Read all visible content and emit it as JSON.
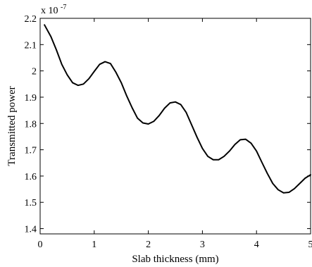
{
  "chart_data": {
    "type": "line",
    "title": "",
    "xlabel": "Slab thickness (mm)",
    "ylabel": "Transmitted power",
    "y_exponent": {
      "base": "x 10",
      "power": "-7"
    },
    "xlim": [
      0,
      5
    ],
    "ylim": [
      1.38,
      2.2
    ],
    "x_ticks": [
      0,
      1,
      2,
      3,
      4,
      5
    ],
    "x_tick_labels": [
      "0",
      "1",
      "2",
      "3",
      "4",
      "5"
    ],
    "y_ticks": [
      1.4,
      1.5,
      1.6,
      1.7,
      1.8,
      1.9,
      2.0,
      2.1,
      2.2
    ],
    "y_tick_labels": [
      "1.4",
      "1.5",
      "1.6",
      "1.7",
      "1.8",
      "1.9",
      "2",
      "2.1",
      "2.2"
    ],
    "grid": false,
    "line_color": "#000000",
    "series": [
      {
        "x": [
          0.08,
          0.2,
          0.3,
          0.4,
          0.5,
          0.6,
          0.7,
          0.8,
          0.9,
          1.0,
          1.1,
          1.2,
          1.3,
          1.4,
          1.5,
          1.6,
          1.7,
          1.8,
          1.9,
          2.0,
          2.1,
          2.2,
          2.3,
          2.4,
          2.5,
          2.6,
          2.7,
          2.8,
          2.9,
          3.0,
          3.1,
          3.2,
          3.3,
          3.4,
          3.5,
          3.6,
          3.7,
          3.8,
          3.9,
          4.0,
          4.1,
          4.2,
          4.3,
          4.4,
          4.5,
          4.6,
          4.7,
          4.8,
          4.9,
          5.0
        ],
        "y": [
          2.175,
          2.13,
          2.08,
          2.025,
          1.985,
          1.955,
          1.945,
          1.95,
          1.97,
          1.998,
          2.025,
          2.035,
          2.028,
          1.995,
          1.955,
          1.905,
          1.86,
          1.82,
          1.802,
          1.798,
          1.808,
          1.83,
          1.858,
          1.878,
          1.882,
          1.872,
          1.842,
          1.795,
          1.748,
          1.705,
          1.675,
          1.662,
          1.662,
          1.675,
          1.695,
          1.72,
          1.738,
          1.74,
          1.725,
          1.695,
          1.652,
          1.61,
          1.572,
          1.548,
          1.536,
          1.538,
          1.552,
          1.572,
          1.592,
          1.605
        ]
      }
    ]
  }
}
